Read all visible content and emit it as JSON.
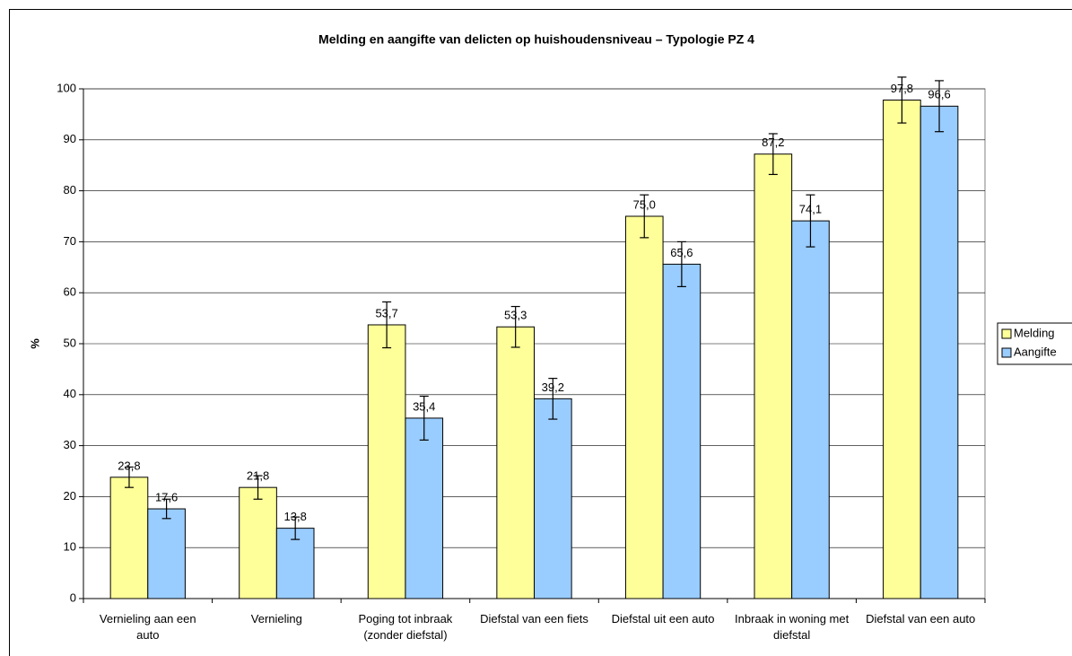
{
  "chart_data": {
    "type": "bar",
    "title": "Melding en aangifte van delicten op huishoudensniveau – Typologie PZ 4",
    "y_label": "%",
    "categories": [
      "Vernieling aan een auto",
      "Vernieling",
      "Poging tot inbraak (zonder diefstal)",
      "Diefstal van een fiets",
      "Diefstal uit een auto",
      "Inbraak in woning met diefstal",
      "Diefstal van een auto"
    ],
    "series": [
      {
        "name": "Melding",
        "color": "#ffff99",
        "values": [
          23.8,
          21.8,
          53.7,
          53.3,
          75.0,
          87.2,
          97.8
        ],
        "value_labels": [
          "23,8",
          "21,8",
          "53,7",
          "53,3",
          "75,0",
          "87,2",
          "97,8"
        ],
        "errors": [
          2.0,
          2.3,
          4.5,
          4.0,
          4.2,
          4.0,
          4.5
        ]
      },
      {
        "name": "Aangifte",
        "color": "#99ccff",
        "values": [
          17.6,
          13.8,
          35.4,
          39.2,
          65.6,
          74.1,
          96.6
        ],
        "value_labels": [
          "17,6",
          "13,8",
          "35,4",
          "39,2",
          "65,6",
          "74,1",
          "96,6"
        ],
        "errors": [
          1.9,
          2.2,
          4.3,
          4.0,
          4.4,
          5.1,
          5.0
        ]
      }
    ],
    "ylim": [
      0,
      100
    ],
    "yticks": [
      0,
      10,
      20,
      30,
      40,
      50,
      60,
      70,
      80,
      90,
      100
    ],
    "grid": true,
    "legend": "right"
  }
}
